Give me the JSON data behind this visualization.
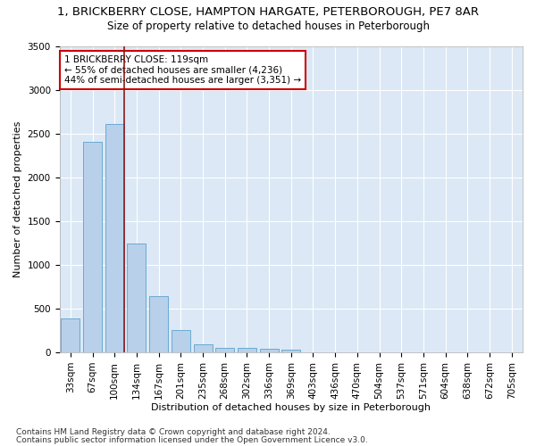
{
  "title_line1": "1, BRICKBERRY CLOSE, HAMPTON HARGATE, PETERBOROUGH, PE7 8AR",
  "title_line2": "Size of property relative to detached houses in Peterborough",
  "xlabel": "Distribution of detached houses by size in Peterborough",
  "ylabel": "Number of detached properties",
  "footnote1": "Contains HM Land Registry data © Crown copyright and database right 2024.",
  "footnote2": "Contains public sector information licensed under the Open Government Licence v3.0.",
  "bar_values": [
    390,
    2400,
    2610,
    1240,
    640,
    260,
    90,
    55,
    55,
    40,
    30,
    0,
    0,
    0,
    0,
    0,
    0,
    0,
    0,
    0,
    0
  ],
  "bar_labels": [
    "33sqm",
    "67sqm",
    "100sqm",
    "134sqm",
    "167sqm",
    "201sqm",
    "235sqm",
    "268sqm",
    "302sqm",
    "336sqm",
    "369sqm",
    "403sqm",
    "436sqm",
    "470sqm",
    "504sqm",
    "537sqm",
    "571sqm",
    "604sqm",
    "638sqm",
    "672sqm",
    "705sqm"
  ],
  "bar_color": "#b8d0ea",
  "bar_edge_color": "#6aaad4",
  "background_color": "#dce8f5",
  "grid_color": "#ffffff",
  "vline_color": "#8b1a1a",
  "annotation_text": "1 BRICKBERRY CLOSE: 119sqm\n← 55% of detached houses are smaller (4,236)\n44% of semi-detached houses are larger (3,351) →",
  "annotation_box_color": "#ffffff",
  "annotation_box_edge": "#cc0000",
  "ylim": [
    0,
    3500
  ],
  "yticks": [
    0,
    500,
    1000,
    1500,
    2000,
    2500,
    3000,
    3500
  ],
  "title_fontsize": 9.5,
  "subtitle_fontsize": 8.5,
  "axis_label_fontsize": 8,
  "tick_fontsize": 7.5,
  "annotation_fontsize": 7.5,
  "footnote_fontsize": 6.5
}
